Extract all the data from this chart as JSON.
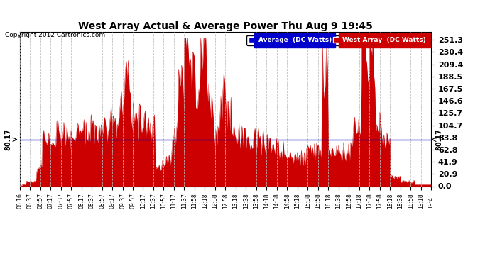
{
  "title": "West Array Actual & Average Power Thu Aug 9 19:45",
  "copyright": "Copyright 2012 Cartronics.com",
  "average_value": 80.17,
  "average_label": "80.17",
  "ylim": [
    0.0,
    265.0
  ],
  "ytick_values": [
    0.0,
    20.9,
    41.9,
    62.8,
    83.8,
    104.7,
    125.7,
    146.6,
    167.5,
    188.5,
    209.4,
    230.4,
    251.3
  ],
  "ytick_labels": [
    "0.0",
    "20.9",
    "41.9",
    "62.8",
    "83.8",
    "104.7",
    "125.7",
    "146.6",
    "167.5",
    "188.5",
    "209.4",
    "230.4",
    "251.3"
  ],
  "background_color": "#ffffff",
  "fill_color": "#cc0000",
  "line_color": "#0000bb",
  "grid_color": "#bbbbbb",
  "legend_avg_bg": "#0000cc",
  "legend_west_bg": "#cc0000",
  "legend_avg_label": "Average  (DC Watts)",
  "legend_west_label": "West Array  (DC Watts)",
  "xtick_labels": [
    "06:16",
    "06:37",
    "06:57",
    "07:17",
    "07:37",
    "07:57",
    "08:17",
    "08:37",
    "08:57",
    "09:17",
    "09:37",
    "09:57",
    "10:17",
    "10:37",
    "10:57",
    "11:17",
    "11:37",
    "11:58",
    "12:18",
    "12:38",
    "12:58",
    "13:18",
    "13:38",
    "13:58",
    "14:18",
    "14:38",
    "14:58",
    "15:18",
    "15:38",
    "15:58",
    "16:18",
    "16:38",
    "16:58",
    "17:18",
    "17:38",
    "17:58",
    "18:18",
    "18:38",
    "18:58",
    "19:18",
    "19:41"
  ],
  "n_points": 410
}
